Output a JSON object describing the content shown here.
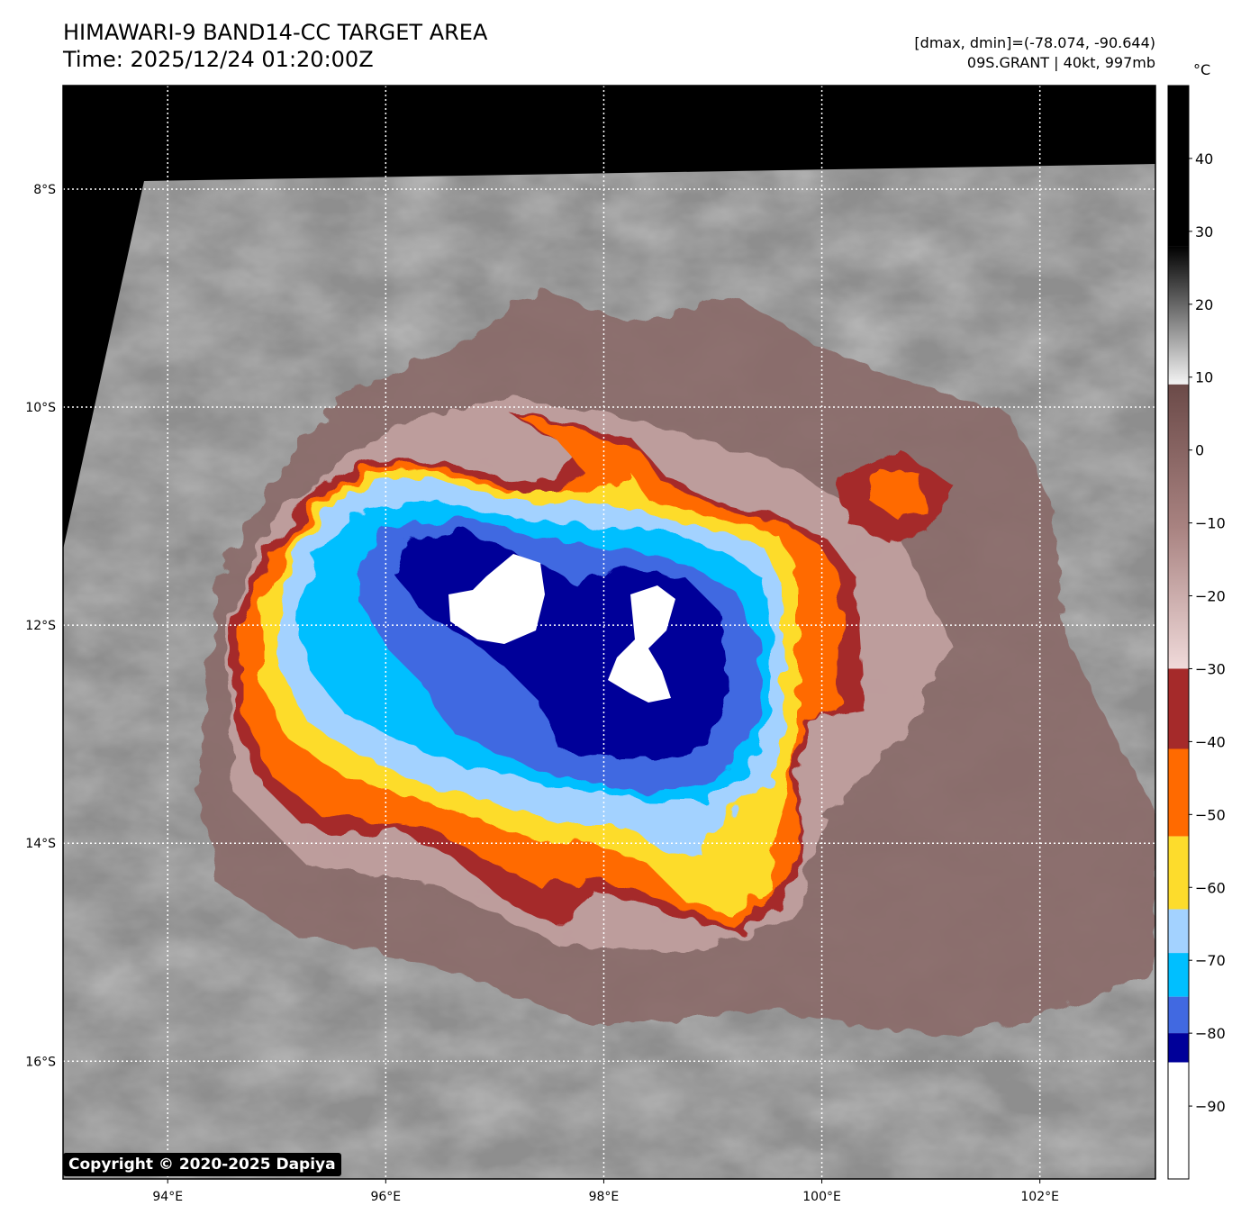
{
  "header": {
    "title": "HIMAWARI-9 BAND14-CC TARGET AREA",
    "time": "Time: 2025/12/24 01:20:00Z",
    "dminmax": "[dmax, dmin]=(-78.074, -90.644)",
    "storm": "09S.GRANT | 40kt, 997mb"
  },
  "map": {
    "lon_range": [
      93.04,
      103.06
    ],
    "lat_range": [
      -7.05,
      -17.08
    ],
    "lon_ticks": [
      {
        "v": 94,
        "label": "94°E"
      },
      {
        "v": 96,
        "label": "96°E"
      },
      {
        "v": 98,
        "label": "98°E"
      },
      {
        "v": 100,
        "label": "100°E"
      },
      {
        "v": 102,
        "label": "102°E"
      }
    ],
    "lat_ticks": [
      {
        "v": -8,
        "label": "8°S"
      },
      {
        "v": -10,
        "label": "10°S"
      },
      {
        "v": -12,
        "label": "12°S"
      },
      {
        "v": -14,
        "label": "14°S"
      },
      {
        "v": -16,
        "label": "16°S"
      }
    ]
  },
  "colorbar": {
    "unit": "°C",
    "range": [
      -100,
      50
    ],
    "ticks": [
      40,
      30,
      20,
      10,
      0,
      -10,
      -20,
      -30,
      -40,
      -50,
      -60,
      -70,
      -80,
      -90
    ],
    "tick_labels": [
      "40",
      "30",
      "20",
      "10",
      "0",
      "−10",
      "−20",
      "−30",
      "−40",
      "−50",
      "−60",
      "−70",
      "−80",
      "−90"
    ],
    "segments": [
      {
        "from": 28,
        "to": 50,
        "color": "#000000"
      },
      {
        "from": 9,
        "to": 28,
        "color": "gradient-gray"
      },
      {
        "from": -30,
        "to": 9,
        "color": "gradient-brown"
      },
      {
        "from": -41,
        "to": -30,
        "color": "#a52a2a"
      },
      {
        "from": -53,
        "to": -41,
        "color": "#ff6a00"
      },
      {
        "from": -63,
        "to": -53,
        "color": "#fddc2c"
      },
      {
        "from": -69,
        "to": -63,
        "color": "#a3d2ff"
      },
      {
        "from": -75,
        "to": -69,
        "color": "#00bfff"
      },
      {
        "from": -80,
        "to": -75,
        "color": "#4169e1"
      },
      {
        "from": -84,
        "to": -80,
        "color": "#000099"
      },
      {
        "from": -100,
        "to": -84,
        "color": "#ffffff"
      }
    ]
  },
  "copyright": "Copyright © 2020-2025 Dapiya"
}
